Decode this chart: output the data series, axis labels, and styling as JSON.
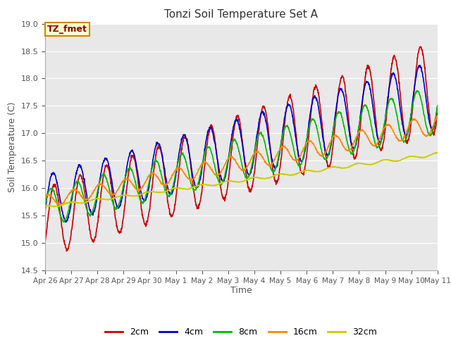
{
  "title": "Tonzi Soil Temperature Set A",
  "xlabel": "Time",
  "ylabel": "Soil Temperature (C)",
  "ylim": [
    14.5,
    19.0
  ],
  "yticks": [
    14.5,
    15.0,
    15.5,
    16.0,
    16.5,
    17.0,
    17.5,
    18.0,
    18.5,
    19.0
  ],
  "x_tick_labels": [
    "Apr 26",
    "Apr 27",
    "Apr 28",
    "Apr 29",
    "Apr 30",
    "May 1",
    "May 2",
    "May 3",
    "May 4",
    "May 5",
    "May 6",
    "May 7",
    "May 8",
    "May 9",
    "May 10",
    "May 11"
  ],
  "legend_labels": [
    "2cm",
    "4cm",
    "8cm",
    "16cm",
    "32cm"
  ],
  "colors": {
    "2cm": "#cc0000",
    "4cm": "#0000cc",
    "8cm": "#00bb00",
    "16cm": "#ff8800",
    "32cm": "#cccc00"
  },
  "line_width": 1.2,
  "fig_bg_color": "#ffffff",
  "plot_bg_color": "#e8e8e8",
  "grid_color": "#ffffff",
  "annotation_text": "TZ_fmet",
  "annotation_bg": "#ffffcc",
  "annotation_border": "#cc8800",
  "n_days": 15,
  "pts_per_day": 96
}
